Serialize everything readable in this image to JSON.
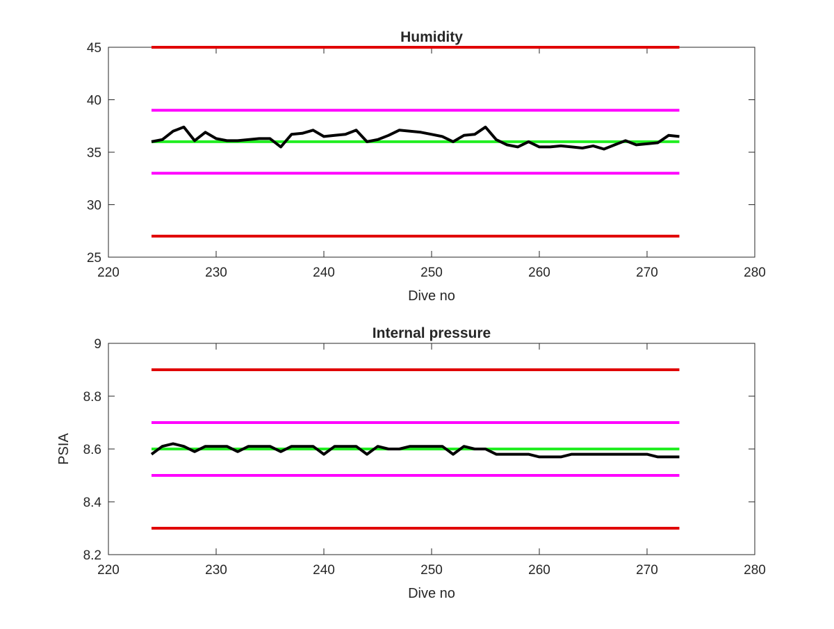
{
  "chart_data": [
    {
      "type": "line",
      "title": "Humidity",
      "xlabel": "Dive no",
      "ylabel": "",
      "xlim": [
        220,
        280
      ],
      "ylim": [
        25,
        45
      ],
      "xticks": [
        220,
        230,
        240,
        250,
        260,
        270,
        280
      ],
      "yticks": [
        25,
        30,
        35,
        40,
        45
      ],
      "grid": false,
      "reference_lines": [
        {
          "y": 45,
          "x_range": [
            224,
            273
          ],
          "color": "#e00000"
        },
        {
          "y": 39,
          "x_range": [
            224,
            273
          ],
          "color": "#ff00ff"
        },
        {
          "y": 36,
          "x_range": [
            224,
            273
          ],
          "color": "#22ee22"
        },
        {
          "y": 33,
          "x_range": [
            224,
            273
          ],
          "color": "#ff00ff"
        },
        {
          "y": 27,
          "x_range": [
            224,
            273
          ],
          "color": "#e00000"
        }
      ],
      "series": [
        {
          "color": "#000000",
          "x": [
            224,
            225,
            226,
            227,
            228,
            229,
            230,
            231,
            232,
            233,
            234,
            235,
            236,
            237,
            238,
            239,
            240,
            241,
            242,
            243,
            244,
            245,
            246,
            247,
            248,
            249,
            250,
            251,
            252,
            253,
            254,
            255,
            256,
            257,
            258,
            259,
            260,
            261,
            262,
            263,
            264,
            265,
            266,
            267,
            268,
            269,
            270,
            271,
            272,
            273
          ],
          "y": [
            36.0,
            36.2,
            37.0,
            37.4,
            36.1,
            36.9,
            36.3,
            36.1,
            36.1,
            36.2,
            36.3,
            36.3,
            35.5,
            36.7,
            36.8,
            37.1,
            36.5,
            36.6,
            36.7,
            37.1,
            36.0,
            36.2,
            36.6,
            37.1,
            37.0,
            36.9,
            36.7,
            36.5,
            36.0,
            36.6,
            36.7,
            37.4,
            36.2,
            35.7,
            35.5,
            36.0,
            35.5,
            35.5,
            35.6,
            35.5,
            35.4,
            35.6,
            35.3,
            35.7,
            36.1,
            35.7,
            35.8,
            35.9,
            36.6,
            36.5
          ]
        }
      ]
    },
    {
      "type": "line",
      "title": "Internal pressure",
      "xlabel": "Dive no",
      "ylabel": "PSIA",
      "xlim": [
        220,
        280
      ],
      "ylim": [
        8.2,
        9.0
      ],
      "xticks": [
        220,
        230,
        240,
        250,
        260,
        270,
        280
      ],
      "yticks": [
        8.2,
        8.4,
        8.6,
        8.8,
        9
      ],
      "grid": false,
      "reference_lines": [
        {
          "y": 8.9,
          "x_range": [
            224,
            273
          ],
          "color": "#e00000"
        },
        {
          "y": 8.7,
          "x_range": [
            224,
            273
          ],
          "color": "#ff00ff"
        },
        {
          "y": 8.6,
          "x_range": [
            224,
            273
          ],
          "color": "#22ee22"
        },
        {
          "y": 8.5,
          "x_range": [
            224,
            273
          ],
          "color": "#ff00ff"
        },
        {
          "y": 8.3,
          "x_range": [
            224,
            273
          ],
          "color": "#e00000"
        }
      ],
      "series": [
        {
          "color": "#000000",
          "x": [
            224,
            225,
            226,
            227,
            228,
            229,
            230,
            231,
            232,
            233,
            234,
            235,
            236,
            237,
            238,
            239,
            240,
            241,
            242,
            243,
            244,
            245,
            246,
            247,
            248,
            249,
            250,
            251,
            252,
            253,
            254,
            255,
            256,
            257,
            258,
            259,
            260,
            261,
            262,
            263,
            264,
            265,
            266,
            267,
            268,
            269,
            270,
            271,
            272,
            273
          ],
          "y": [
            8.58,
            8.61,
            8.62,
            8.61,
            8.59,
            8.61,
            8.61,
            8.61,
            8.59,
            8.61,
            8.61,
            8.61,
            8.59,
            8.61,
            8.61,
            8.61,
            8.58,
            8.61,
            8.61,
            8.61,
            8.58,
            8.61,
            8.6,
            8.6,
            8.61,
            8.61,
            8.61,
            8.61,
            8.58,
            8.61,
            8.6,
            8.6,
            8.58,
            8.58,
            8.58,
            8.58,
            8.57,
            8.57,
            8.57,
            8.58,
            8.58,
            8.58,
            8.58,
            8.58,
            8.58,
            8.58,
            8.58,
            8.57,
            8.57,
            8.57
          ]
        }
      ]
    }
  ]
}
